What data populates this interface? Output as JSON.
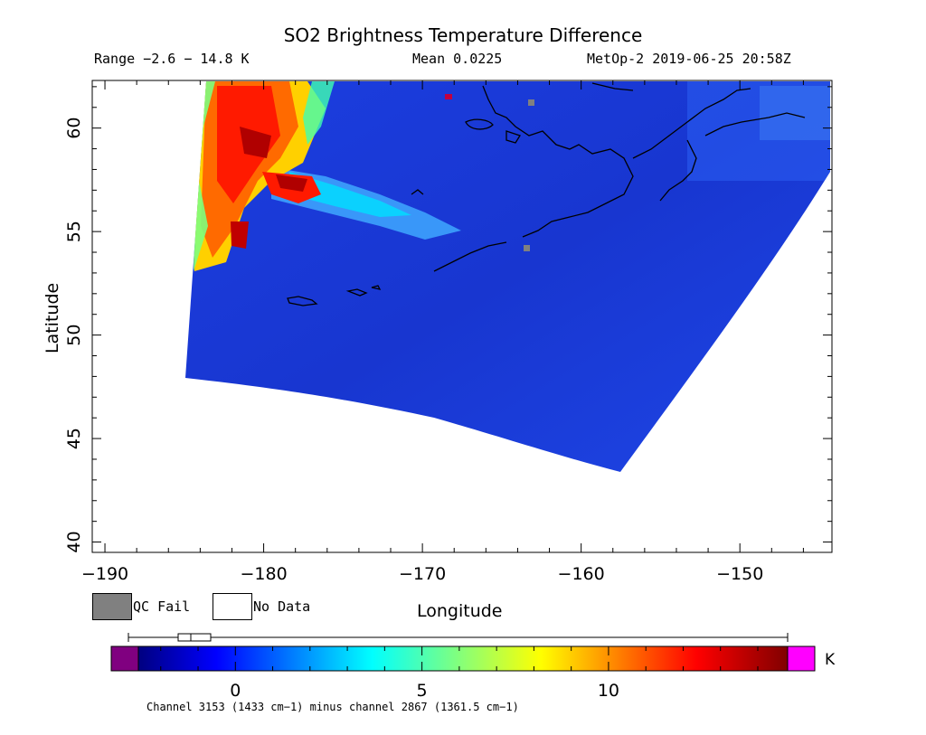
{
  "header": {
    "title": "SO2 Brightness Temperature Difference",
    "range": "Range −2.6 − 14.8 K",
    "mean": "Mean 0.0225",
    "stamp": "MetOp-2 2019-06-25 20:58Z"
  },
  "axes": {
    "xlabel": "Longitude",
    "ylabel": "Latitude",
    "xticks": [
      "−190",
      "−180",
      "−170",
      "−160",
      "−150"
    ],
    "yticks": [
      "40",
      "45",
      "50",
      "55",
      "60"
    ],
    "xlim": [
      -190.8,
      -144.2
    ],
    "ylim": [
      39.5,
      62.3
    ]
  },
  "legend": {
    "qc_fail": "QC Fail",
    "no_data": "No Data"
  },
  "colorbar": {
    "ticks": [
      "0",
      "5",
      "10"
    ],
    "unit": "K",
    "range": [
      -2.6,
      14.8
    ]
  },
  "footer": "Channel 3153 (1433 cm−1) minus channel 2867 (1361.5 cm−1)",
  "colors": {
    "background_field": "#1a3fd6",
    "qc_fail": "#808080",
    "no_data": "#ffffff",
    "under": "#800080",
    "over": "#ff00ff"
  }
}
